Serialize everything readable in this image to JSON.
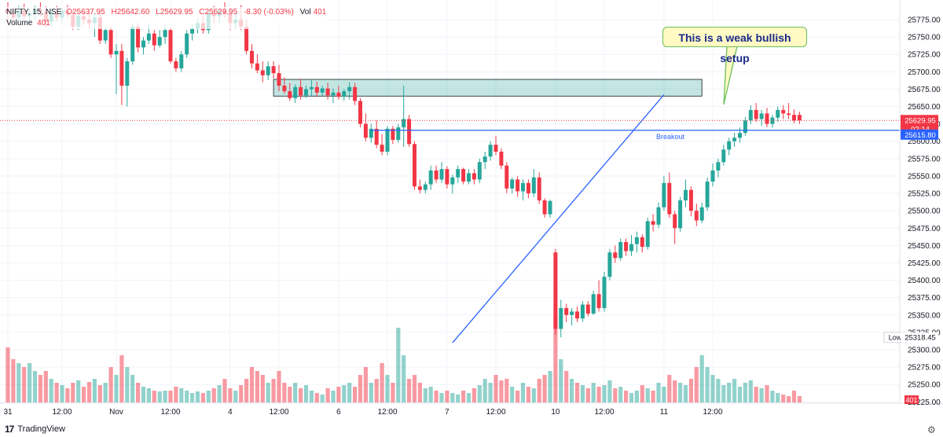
{
  "legend": {
    "symbol": "NIFTY, 15, NSE",
    "o": "O25637.95",
    "h": "H25642.60",
    "l": "L25629.95",
    "c": "C25629.95",
    "change": "-8.30 (-0.03%)",
    "vol_label": "Vol",
    "vol_value": "401",
    "volume_label": "Volume",
    "volume_value": "401"
  },
  "annotation": {
    "text": "This is a weak bullish setup"
  },
  "branding": {
    "name": "TradingView",
    "logo": "17"
  },
  "colors": {
    "up": "#26a69a",
    "down": "#f23645",
    "zone": "#26a69a",
    "line": "#2962ff",
    "callout_border": "#6bbf59",
    "callout_fill": "#fff9c4"
  },
  "chart_data": {
    "type": "candlestick",
    "symbol": "NIFTY",
    "interval": "15",
    "y_ticks": [
      "25775.00",
      "25750.00",
      "25725.00",
      "25700.00",
      "25675.00",
      "25650.00",
      "25625.00",
      "25600.00",
      "25575.00",
      "25550.00",
      "25525.00",
      "25500.00",
      "25475.00",
      "25450.00",
      "25425.00",
      "25400.00",
      "25375.00",
      "25350.00",
      "25325.00",
      "25300.00",
      "25275.00",
      "25250.00",
      "25225.00"
    ],
    "ylim": [
      25218,
      25798
    ],
    "x_ticks": [
      {
        "label": "31",
        "i": 0
      },
      {
        "label": "12:00",
        "i": 10
      },
      {
        "label": "Nov",
        "i": 20
      },
      {
        "label": "12:00",
        "i": 30
      },
      {
        "label": "4",
        "i": 41
      },
      {
        "label": "12:00",
        "i": 50
      },
      {
        "label": "6",
        "i": 61
      },
      {
        "label": "12:00",
        "i": 70
      },
      {
        "label": "7",
        "i": 81
      },
      {
        "label": "12:00",
        "i": 90
      },
      {
        "label": "10",
        "i": 101
      },
      {
        "label": "12:00",
        "i": 110
      },
      {
        "label": "11",
        "i": 121
      },
      {
        "label": "12:00",
        "i": 130
      }
    ],
    "price_labels": {
      "last": {
        "value": "25629.95",
        "countdown": "02:14"
      },
      "breakout": {
        "value": "25615.80"
      },
      "low": {
        "label": "Low",
        "value": "25318.45"
      },
      "volume": {
        "value": "401"
      }
    },
    "zone": {
      "i_start": 49,
      "i_end": 128,
      "top": 25689,
      "bottom": 25665
    },
    "breakout_line": {
      "value": 25615.8,
      "i_start": 67,
      "label": "Breakout"
    },
    "trendline": {
      "start": {
        "i": 82,
        "y": 25310
      },
      "end": {
        "i": 121,
        "y": 25667
      }
    },
    "candles": [
      {
        "o": 25790,
        "h": 25800,
        "l": 25770,
        "c": 25785,
        "v": 70
      },
      {
        "o": 25785,
        "h": 25792,
        "l": 25772,
        "c": 25778,
        "v": 55
      },
      {
        "o": 25778,
        "h": 25795,
        "l": 25770,
        "c": 25788,
        "v": 50
      },
      {
        "o": 25788,
        "h": 25798,
        "l": 25776,
        "c": 25780,
        "v": 45
      },
      {
        "o": 25780,
        "h": 25790,
        "l": 25770,
        "c": 25784,
        "v": 50
      },
      {
        "o": 25784,
        "h": 25795,
        "l": 25775,
        "c": 25790,
        "v": 40
      },
      {
        "o": 25790,
        "h": 25800,
        "l": 25780,
        "c": 25786,
        "v": 35
      },
      {
        "o": 25786,
        "h": 25794,
        "l": 25765,
        "c": 25772,
        "v": 40
      },
      {
        "o": 25772,
        "h": 25790,
        "l": 25765,
        "c": 25785,
        "v": 30
      },
      {
        "o": 25785,
        "h": 25795,
        "l": 25772,
        "c": 25778,
        "v": 25
      },
      {
        "o": 25778,
        "h": 25792,
        "l": 25770,
        "c": 25788,
        "v": 22
      },
      {
        "o": 25788,
        "h": 25796,
        "l": 25778,
        "c": 25782,
        "v": 18
      },
      {
        "o": 25782,
        "h": 25788,
        "l": 25760,
        "c": 25765,
        "v": 25
      },
      {
        "o": 25765,
        "h": 25786,
        "l": 25760,
        "c": 25780,
        "v": 28
      },
      {
        "o": 25780,
        "h": 25788,
        "l": 25768,
        "c": 25775,
        "v": 20
      },
      {
        "o": 25775,
        "h": 25790,
        "l": 25762,
        "c": 25770,
        "v": 26
      },
      {
        "o": 25770,
        "h": 25785,
        "l": 25750,
        "c": 25778,
        "v": 30
      },
      {
        "o": 25778,
        "h": 25786,
        "l": 25740,
        "c": 25745,
        "v": 22
      },
      {
        "o": 25745,
        "h": 25765,
        "l": 25740,
        "c": 25760,
        "v": 25
      },
      {
        "o": 25760,
        "h": 25766,
        "l": 25720,
        "c": 25725,
        "v": 45
      },
      {
        "o": 25725,
        "h": 25740,
        "l": 25668,
        "c": 25730,
        "v": 35
      },
      {
        "o": 25730,
        "h": 25740,
        "l": 25652,
        "c": 25680,
        "v": 60
      },
      {
        "o": 25680,
        "h": 25720,
        "l": 25650,
        "c": 25715,
        "v": 45
      },
      {
        "o": 25715,
        "h": 25770,
        "l": 25710,
        "c": 25765,
        "v": 35
      },
      {
        "o": 25765,
        "h": 25770,
        "l": 25728,
        "c": 25735,
        "v": 25
      },
      {
        "o": 25735,
        "h": 25750,
        "l": 25725,
        "c": 25745,
        "v": 20
      },
      {
        "o": 25745,
        "h": 25770,
        "l": 25740,
        "c": 25755,
        "v": 18
      },
      {
        "o": 25755,
        "h": 25760,
        "l": 25730,
        "c": 25738,
        "v": 15
      },
      {
        "o": 25738,
        "h": 25760,
        "l": 25735,
        "c": 25750,
        "v": 14
      },
      {
        "o": 25750,
        "h": 25768,
        "l": 25740,
        "c": 25760,
        "v": 15
      },
      {
        "o": 25760,
        "h": 25765,
        "l": 25712,
        "c": 25715,
        "v": 15
      },
      {
        "o": 25715,
        "h": 25720,
        "l": 25700,
        "c": 25705,
        "v": 20
      },
      {
        "o": 25705,
        "h": 25730,
        "l": 25700,
        "c": 25725,
        "v": 18
      },
      {
        "o": 25725,
        "h": 25760,
        "l": 25720,
        "c": 25755,
        "v": 15
      },
      {
        "o": 25755,
        "h": 25768,
        "l": 25745,
        "c": 25762,
        "v": 12
      },
      {
        "o": 25762,
        "h": 25778,
        "l": 25755,
        "c": 25770,
        "v": 14
      },
      {
        "o": 25770,
        "h": 25780,
        "l": 25755,
        "c": 25760,
        "v": 12
      },
      {
        "o": 25760,
        "h": 25790,
        "l": 25755,
        "c": 25785,
        "v": 15
      },
      {
        "o": 25785,
        "h": 25795,
        "l": 25770,
        "c": 25780,
        "v": 18
      },
      {
        "o": 25780,
        "h": 25792,
        "l": 25770,
        "c": 25788,
        "v": 22
      },
      {
        "o": 25788,
        "h": 25800,
        "l": 25778,
        "c": 25784,
        "v": 30
      },
      {
        "o": 25784,
        "h": 25792,
        "l": 25760,
        "c": 25770,
        "v": 18
      },
      {
        "o": 25770,
        "h": 25788,
        "l": 25762,
        "c": 25775,
        "v": 15
      },
      {
        "o": 25775,
        "h": 25796,
        "l": 25760,
        "c": 25765,
        "v": 22
      },
      {
        "o": 25765,
        "h": 25775,
        "l": 25725,
        "c": 25730,
        "v": 30
      },
      {
        "o": 25730,
        "h": 25740,
        "l": 25705,
        "c": 25712,
        "v": 45
      },
      {
        "o": 25712,
        "h": 25725,
        "l": 25698,
        "c": 25702,
        "v": 40
      },
      {
        "o": 25702,
        "h": 25715,
        "l": 25685,
        "c": 25695,
        "v": 35
      },
      {
        "o": 25695,
        "h": 25715,
        "l": 25688,
        "c": 25708,
        "v": 25
      },
      {
        "o": 25708,
        "h": 25715,
        "l": 25690,
        "c": 25698,
        "v": 30
      },
      {
        "o": 25698,
        "h": 25710,
        "l": 25672,
        "c": 25680,
        "v": 40
      },
      {
        "o": 25680,
        "h": 25692,
        "l": 25668,
        "c": 25672,
        "v": 25
      },
      {
        "o": 25672,
        "h": 25684,
        "l": 25658,
        "c": 25662,
        "v": 20
      },
      {
        "o": 25662,
        "h": 25682,
        "l": 25655,
        "c": 25678,
        "v": 25
      },
      {
        "o": 25678,
        "h": 25690,
        "l": 25660,
        "c": 25666,
        "v": 18
      },
      {
        "o": 25666,
        "h": 25680,
        "l": 25662,
        "c": 25675,
        "v": 22
      },
      {
        "o": 25675,
        "h": 25688,
        "l": 25664,
        "c": 25678,
        "v": 15
      },
      {
        "o": 25678,
        "h": 25686,
        "l": 25664,
        "c": 25670,
        "v": 12
      },
      {
        "o": 25670,
        "h": 25680,
        "l": 25664,
        "c": 25676,
        "v": 10
      },
      {
        "o": 25676,
        "h": 25684,
        "l": 25660,
        "c": 25666,
        "v": 18
      },
      {
        "o": 25666,
        "h": 25676,
        "l": 25655,
        "c": 25670,
        "v": 15
      },
      {
        "o": 25670,
        "h": 25680,
        "l": 25660,
        "c": 25664,
        "v": 20
      },
      {
        "o": 25664,
        "h": 25675,
        "l": 25658,
        "c": 25672,
        "v": 22
      },
      {
        "o": 25672,
        "h": 25685,
        "l": 25660,
        "c": 25678,
        "v": 25
      },
      {
        "o": 25678,
        "h": 25684,
        "l": 25652,
        "c": 25658,
        "v": 20
      },
      {
        "o": 25658,
        "h": 25662,
        "l": 25620,
        "c": 25625,
        "v": 35
      },
      {
        "o": 25625,
        "h": 25640,
        "l": 25600,
        "c": 25605,
        "v": 45
      },
      {
        "o": 25605,
        "h": 25625,
        "l": 25598,
        "c": 25618,
        "v": 25
      },
      {
        "o": 25618,
        "h": 25630,
        "l": 25590,
        "c": 25595,
        "v": 30
      },
      {
        "o": 25595,
        "h": 25610,
        "l": 25580,
        "c": 25585,
        "v": 50
      },
      {
        "o": 25585,
        "h": 25622,
        "l": 25580,
        "c": 25618,
        "v": 35
      },
      {
        "o": 25618,
        "h": 25622,
        "l": 25596,
        "c": 25602,
        "v": 25
      },
      {
        "o": 25602,
        "h": 25625,
        "l": 25598,
        "c": 25620,
        "v": 95
      },
      {
        "o": 25620,
        "h": 25680,
        "l": 25592,
        "c": 25632,
        "v": 60
      },
      {
        "o": 25632,
        "h": 25638,
        "l": 25592,
        "c": 25596,
        "v": 30
      },
      {
        "o": 25596,
        "h": 25600,
        "l": 25530,
        "c": 25535,
        "v": 35
      },
      {
        "o": 25535,
        "h": 25545,
        "l": 25525,
        "c": 25530,
        "v": 25
      },
      {
        "o": 25530,
        "h": 25542,
        "l": 25525,
        "c": 25538,
        "v": 18
      },
      {
        "o": 25538,
        "h": 25565,
        "l": 25530,
        "c": 25558,
        "v": 20
      },
      {
        "o": 25558,
        "h": 25565,
        "l": 25540,
        "c": 25545,
        "v": 15
      },
      {
        "o": 25545,
        "h": 25570,
        "l": 25540,
        "c": 25560,
        "v": 12
      },
      {
        "o": 25560,
        "h": 25564,
        "l": 25532,
        "c": 25538,
        "v": 15
      },
      {
        "o": 25538,
        "h": 25552,
        "l": 25525,
        "c": 25548,
        "v": 12
      },
      {
        "o": 25548,
        "h": 25565,
        "l": 25540,
        "c": 25560,
        "v": 10
      },
      {
        "o": 25560,
        "h": 25562,
        "l": 25538,
        "c": 25542,
        "v": 15
      },
      {
        "o": 25542,
        "h": 25560,
        "l": 25538,
        "c": 25554,
        "v": 12
      },
      {
        "o": 25554,
        "h": 25560,
        "l": 25538,
        "c": 25545,
        "v": 18
      },
      {
        "o": 25545,
        "h": 25575,
        "l": 25540,
        "c": 25570,
        "v": 22
      },
      {
        "o": 25570,
        "h": 25585,
        "l": 25560,
        "c": 25578,
        "v": 30
      },
      {
        "o": 25578,
        "h": 25600,
        "l": 25572,
        "c": 25595,
        "v": 25
      },
      {
        "o": 25595,
        "h": 25608,
        "l": 25580,
        "c": 25585,
        "v": 35
      },
      {
        "o": 25585,
        "h": 25590,
        "l": 25560,
        "c": 25565,
        "v": 28
      },
      {
        "o": 25565,
        "h": 25570,
        "l": 25525,
        "c": 25532,
        "v": 30
      },
      {
        "o": 25532,
        "h": 25548,
        "l": 25525,
        "c": 25545,
        "v": 20
      },
      {
        "o": 25545,
        "h": 25550,
        "l": 25520,
        "c": 25528,
        "v": 15
      },
      {
        "o": 25528,
        "h": 25545,
        "l": 25515,
        "c": 25540,
        "v": 25
      },
      {
        "o": 25540,
        "h": 25545,
        "l": 25518,
        "c": 25525,
        "v": 20
      },
      {
        "o": 25525,
        "h": 25560,
        "l": 25520,
        "c": 25548,
        "v": 18
      },
      {
        "o": 25548,
        "h": 25555,
        "l": 25510,
        "c": 25515,
        "v": 30
      },
      {
        "o": 25515,
        "h": 25518,
        "l": 25490,
        "c": 25495,
        "v": 35
      },
      {
        "o": 25495,
        "h": 25516,
        "l": 25490,
        "c": 25514,
        "v": 40
      },
      {
        "o": 25440,
        "h": 25445,
        "l": 25322,
        "c": 25330,
        "v": 110
      },
      {
        "o": 25330,
        "h": 25372,
        "l": 25318,
        "c": 25360,
        "v": 55
      },
      {
        "o": 25360,
        "h": 25366,
        "l": 25340,
        "c": 25350,
        "v": 40
      },
      {
        "o": 25350,
        "h": 25360,
        "l": 25335,
        "c": 25355,
        "v": 30
      },
      {
        "o": 25355,
        "h": 25362,
        "l": 25340,
        "c": 25345,
        "v": 25
      },
      {
        "o": 25345,
        "h": 25370,
        "l": 25340,
        "c": 25365,
        "v": 22
      },
      {
        "o": 25365,
        "h": 25370,
        "l": 25348,
        "c": 25352,
        "v": 18
      },
      {
        "o": 25352,
        "h": 25385,
        "l": 25350,
        "c": 25380,
        "v": 25
      },
      {
        "o": 25380,
        "h": 25400,
        "l": 25355,
        "c": 25360,
        "v": 20
      },
      {
        "o": 25360,
        "h": 25412,
        "l": 25355,
        "c": 25405,
        "v": 22
      },
      {
        "o": 25405,
        "h": 25445,
        "l": 25400,
        "c": 25440,
        "v": 28
      },
      {
        "o": 25440,
        "h": 25450,
        "l": 25425,
        "c": 25432,
        "v": 18
      },
      {
        "o": 25432,
        "h": 25460,
        "l": 25428,
        "c": 25455,
        "v": 20
      },
      {
        "o": 25455,
        "h": 25460,
        "l": 25435,
        "c": 25442,
        "v": 15
      },
      {
        "o": 25442,
        "h": 25465,
        "l": 25435,
        "c": 25452,
        "v": 12
      },
      {
        "o": 25452,
        "h": 25470,
        "l": 25440,
        "c": 25462,
        "v": 15
      },
      {
        "o": 25462,
        "h": 25466,
        "l": 25440,
        "c": 25448,
        "v": 22
      },
      {
        "o": 25448,
        "h": 25490,
        "l": 25444,
        "c": 25485,
        "v": 18
      },
      {
        "o": 25485,
        "h": 25495,
        "l": 25470,
        "c": 25480,
        "v": 15
      },
      {
        "o": 25480,
        "h": 25512,
        "l": 25475,
        "c": 25505,
        "v": 25
      },
      {
        "o": 25505,
        "h": 25550,
        "l": 25500,
        "c": 25540,
        "v": 20
      },
      {
        "o": 25540,
        "h": 25555,
        "l": 25490,
        "c": 25495,
        "v": 35
      },
      {
        "o": 25495,
        "h": 25500,
        "l": 25452,
        "c": 25475,
        "v": 28
      },
      {
        "o": 25475,
        "h": 25520,
        "l": 25470,
        "c": 25515,
        "v": 25
      },
      {
        "o": 25515,
        "h": 25545,
        "l": 25505,
        "c": 25530,
        "v": 22
      },
      {
        "o": 25530,
        "h": 25535,
        "l": 25492,
        "c": 25500,
        "v": 30
      },
      {
        "o": 25500,
        "h": 25510,
        "l": 25478,
        "c": 25486,
        "v": 45
      },
      {
        "o": 25486,
        "h": 25512,
        "l": 25482,
        "c": 25505,
        "v": 60
      },
      {
        "o": 25505,
        "h": 25548,
        "l": 25500,
        "c": 25542,
        "v": 45
      },
      {
        "o": 25542,
        "h": 25568,
        "l": 25535,
        "c": 25558,
        "v": 35
      },
      {
        "o": 25558,
        "h": 25575,
        "l": 25548,
        "c": 25570,
        "v": 30
      },
      {
        "o": 25570,
        "h": 25595,
        "l": 25565,
        "c": 25588,
        "v": 22
      },
      {
        "o": 25588,
        "h": 25605,
        "l": 25580,
        "c": 25600,
        "v": 25
      },
      {
        "o": 25600,
        "h": 25612,
        "l": 25592,
        "c": 25605,
        "v": 30
      },
      {
        "o": 25605,
        "h": 25620,
        "l": 25598,
        "c": 25612,
        "v": 20
      },
      {
        "o": 25612,
        "h": 25635,
        "l": 25608,
        "c": 25630,
        "v": 25
      },
      {
        "o": 25630,
        "h": 25652,
        "l": 25625,
        "c": 25645,
        "v": 28
      },
      {
        "o": 25645,
        "h": 25655,
        "l": 25628,
        "c": 25632,
        "v": 20
      },
      {
        "o": 25632,
        "h": 25645,
        "l": 25622,
        "c": 25640,
        "v": 18
      },
      {
        "o": 25640,
        "h": 25648,
        "l": 25620,
        "c": 25625,
        "v": 22
      },
      {
        "o": 25625,
        "h": 25638,
        "l": 25620,
        "c": 25634,
        "v": 15
      },
      {
        "o": 25634,
        "h": 25650,
        "l": 25628,
        "c": 25645,
        "v": 12
      },
      {
        "o": 25645,
        "h": 25652,
        "l": 25632,
        "c": 25640,
        "v": 10
      },
      {
        "o": 25640,
        "h": 25655,
        "l": 25632,
        "c": 25638,
        "v": 8
      },
      {
        "o": 25638,
        "h": 25646,
        "l": 25626,
        "c": 25630,
        "v": 15
      },
      {
        "o": 25637.95,
        "h": 25642.6,
        "l": 25625,
        "c": 25629.95,
        "v": 8
      }
    ]
  }
}
